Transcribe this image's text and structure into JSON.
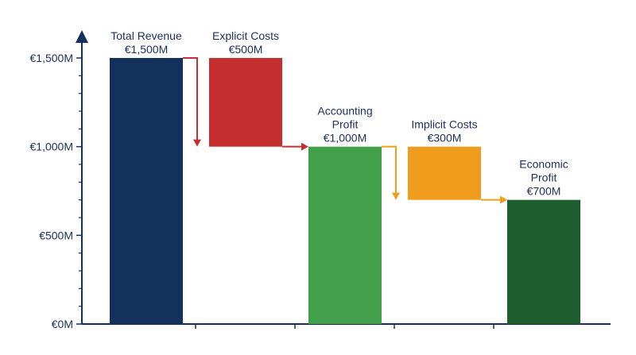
{
  "chart_data": {
    "type": "bar",
    "subtype": "waterfall",
    "title": "",
    "xlabel": "",
    "ylabel": "",
    "ylim": [
      0,
      1500
    ],
    "y_ticks": [
      {
        "value": 0,
        "label": "€0M"
      },
      {
        "value": 500,
        "label": "€500M"
      },
      {
        "value": 1000,
        "label": "€1,000M"
      },
      {
        "value": 1500,
        "label": "€1,500M"
      }
    ],
    "grid": false,
    "legend": "none",
    "steps": [
      {
        "label_lines": [
          "Total Revenue",
          "€1,500M"
        ],
        "value": 1500,
        "kind": "total",
        "start": 0,
        "end": 1500,
        "color": "#13315c"
      },
      {
        "label_lines": [
          "Explicit Costs",
          "€500M"
        ],
        "value": -500,
        "kind": "decrease",
        "start": 1500,
        "end": 1000,
        "color": "#c62f2f"
      },
      {
        "label_lines": [
          "Accounting",
          "Profit",
          "€1,000M"
        ],
        "value": 1000,
        "kind": "total",
        "start": 0,
        "end": 1000,
        "color": "#43a04a"
      },
      {
        "label_lines": [
          "Implicit Costs",
          "€300M"
        ],
        "value": -300,
        "kind": "decrease",
        "start": 1000,
        "end": 700,
        "color": "#f09c1c"
      },
      {
        "label_lines": [
          "Economic",
          "Profit",
          "€700M"
        ],
        "value": 700,
        "kind": "total",
        "start": 0,
        "end": 700,
        "color": "#1e5e2e"
      }
    ],
    "axis_color": "#13315c"
  }
}
